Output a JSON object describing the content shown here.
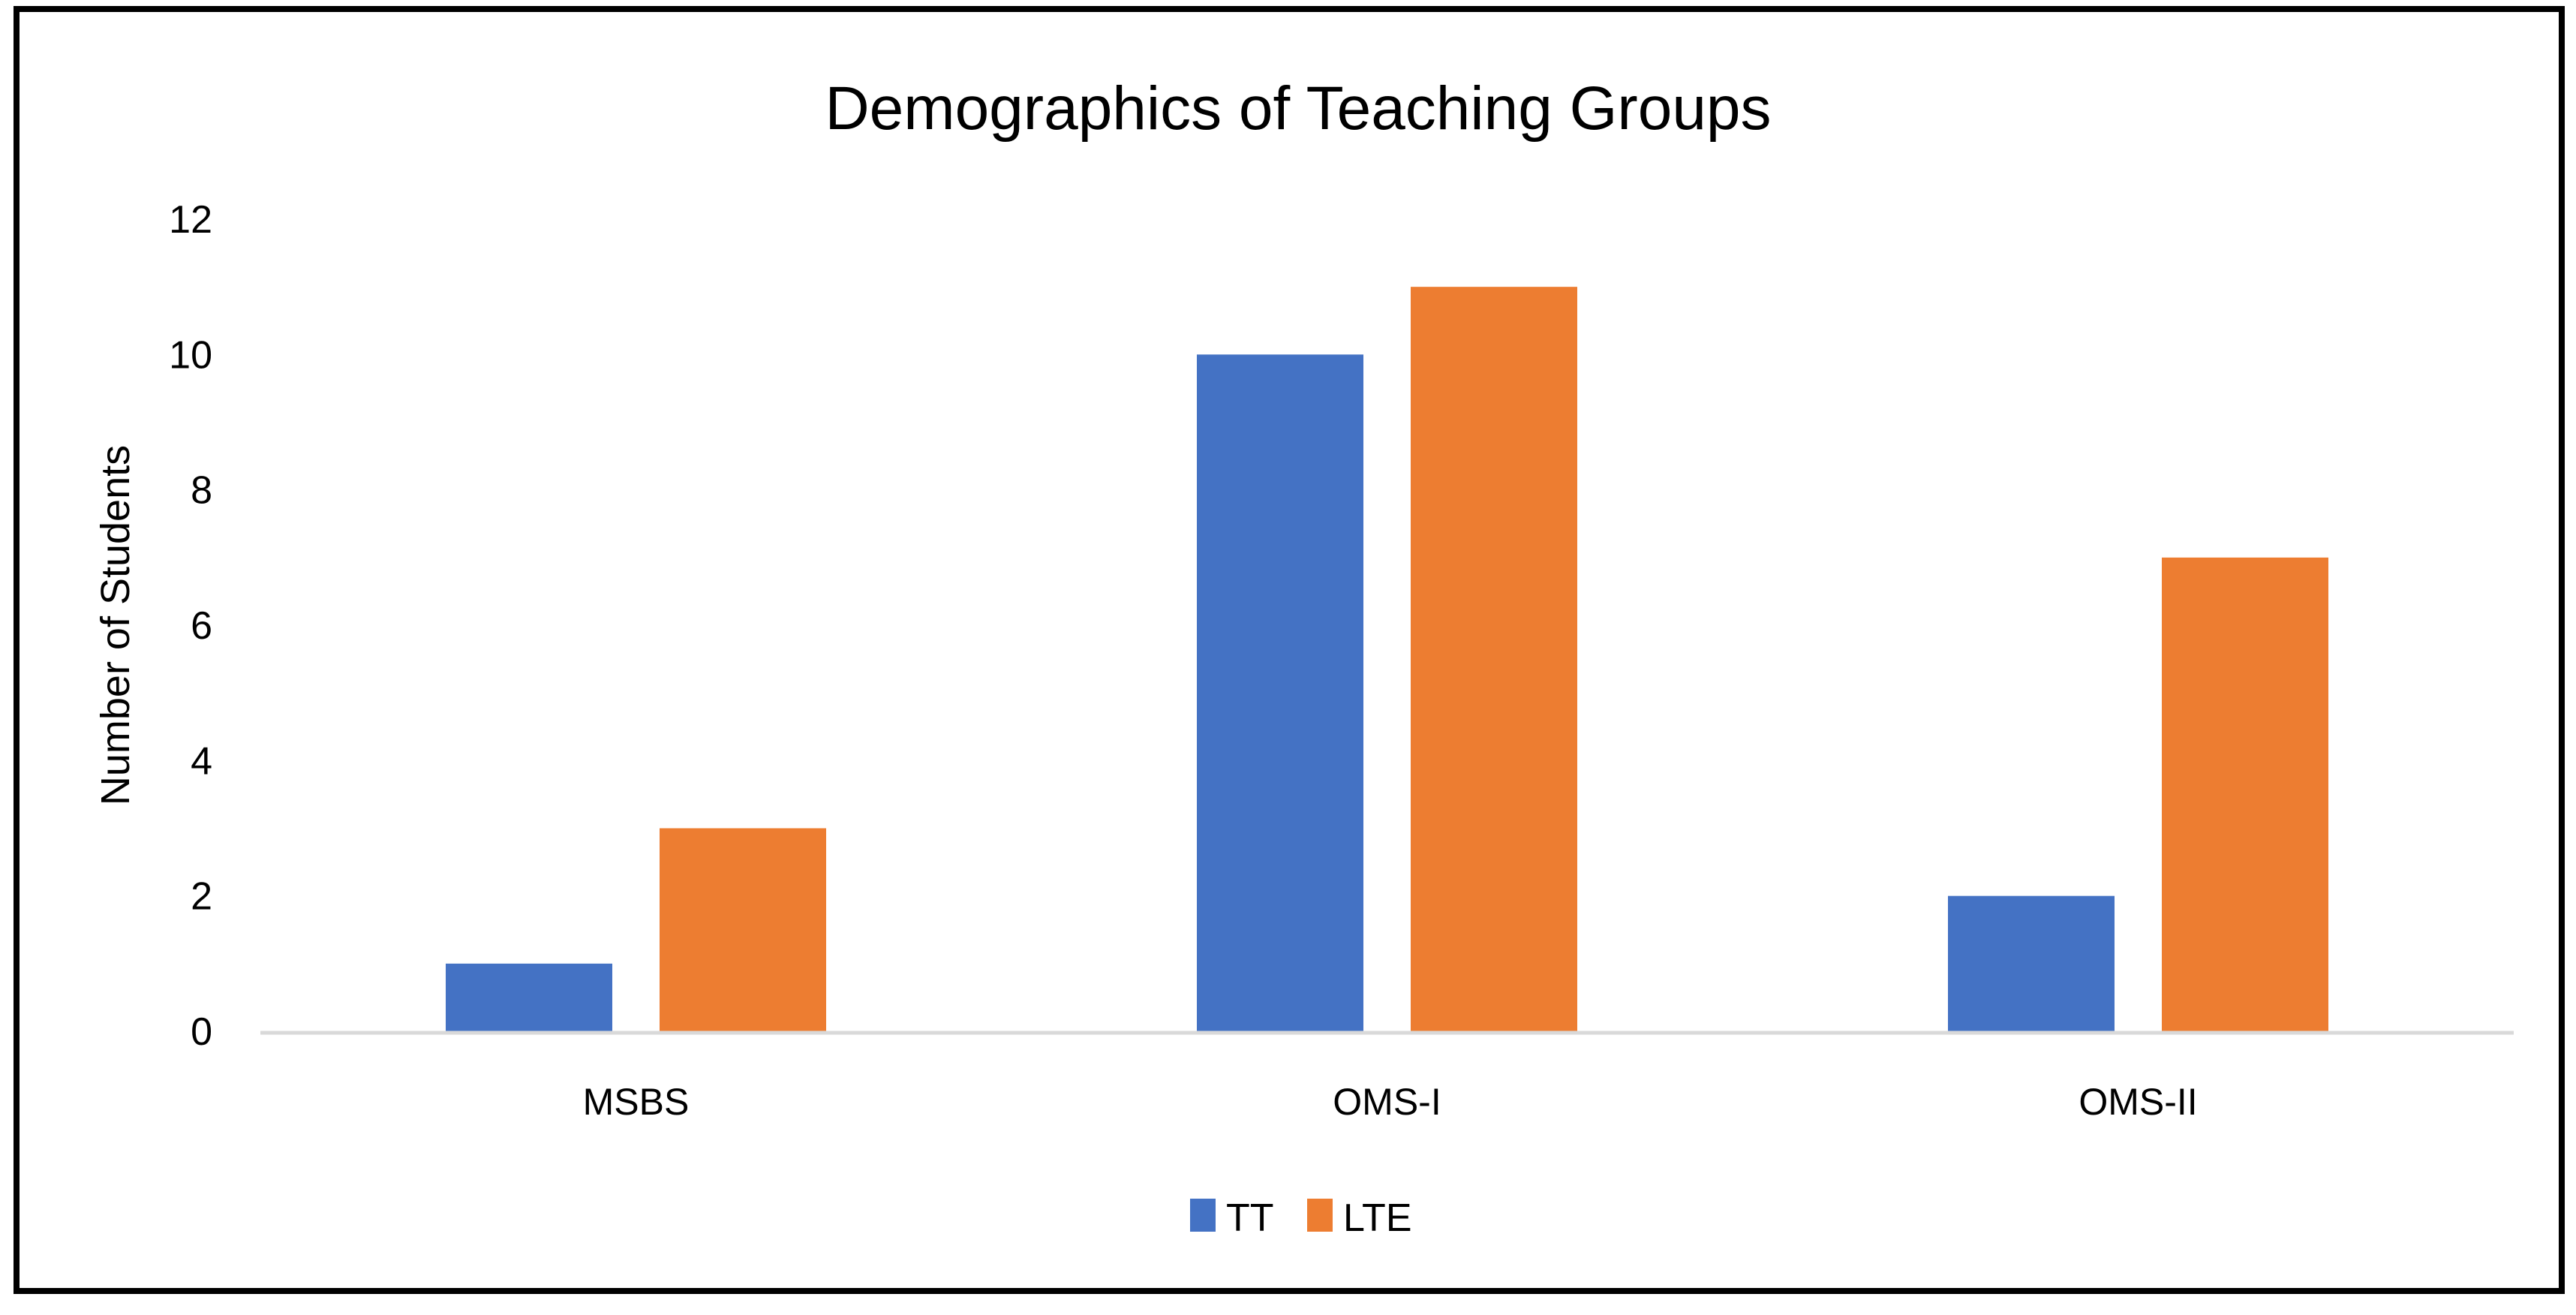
{
  "chart_data": {
    "type": "bar",
    "title": "Demographics of Teaching Groups",
    "xlabel": "",
    "ylabel": "Number of Students",
    "categories": [
      "MSBS",
      "OMS-I",
      "OMS-II"
    ],
    "series": [
      {
        "name": "TT",
        "values": [
          1,
          10,
          2
        ],
        "color": "#4472C4"
      },
      {
        "name": "LTE",
        "values": [
          3,
          11,
          7
        ],
        "color": "#ED7D31"
      }
    ],
    "ylim": [
      0,
      12
    ],
    "yticks": [
      0,
      2,
      4,
      6,
      8,
      10,
      12
    ],
    "grid": false,
    "legend": "bottom"
  }
}
